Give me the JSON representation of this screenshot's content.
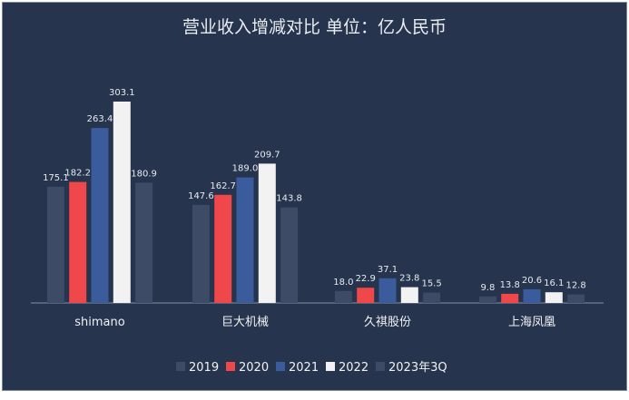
{
  "chart_data": {
    "type": "bar",
    "title": "营业收入增减对比 单位：亿人民币",
    "categories": [
      "shimano",
      "巨大机械",
      "久祺股份",
      "上海凤凰"
    ],
    "series": [
      {
        "name": "2019",
        "color": "#3e4b66",
        "values": [
          175.1,
          147.6,
          18.0,
          9.8
        ]
      },
      {
        "name": "2020",
        "color": "#f0474a",
        "values": [
          182.2,
          162.7,
          22.9,
          13.8
        ]
      },
      {
        "name": "2021",
        "color": "#3a5c9c",
        "values": [
          263.4,
          189.0,
          37.1,
          20.6
        ]
      },
      {
        "name": "2022",
        "color": "#f2f2f2",
        "values": [
          303.1,
          209.7,
          23.8,
          16.1
        ]
      },
      {
        "name": "2023年3Q",
        "color": "#3e4b66",
        "values": [
          180.9,
          143.8,
          15.5,
          12.8
        ]
      }
    ],
    "ylim": [
      0,
      320
    ],
    "grid": false,
    "legend": "bottom"
  }
}
